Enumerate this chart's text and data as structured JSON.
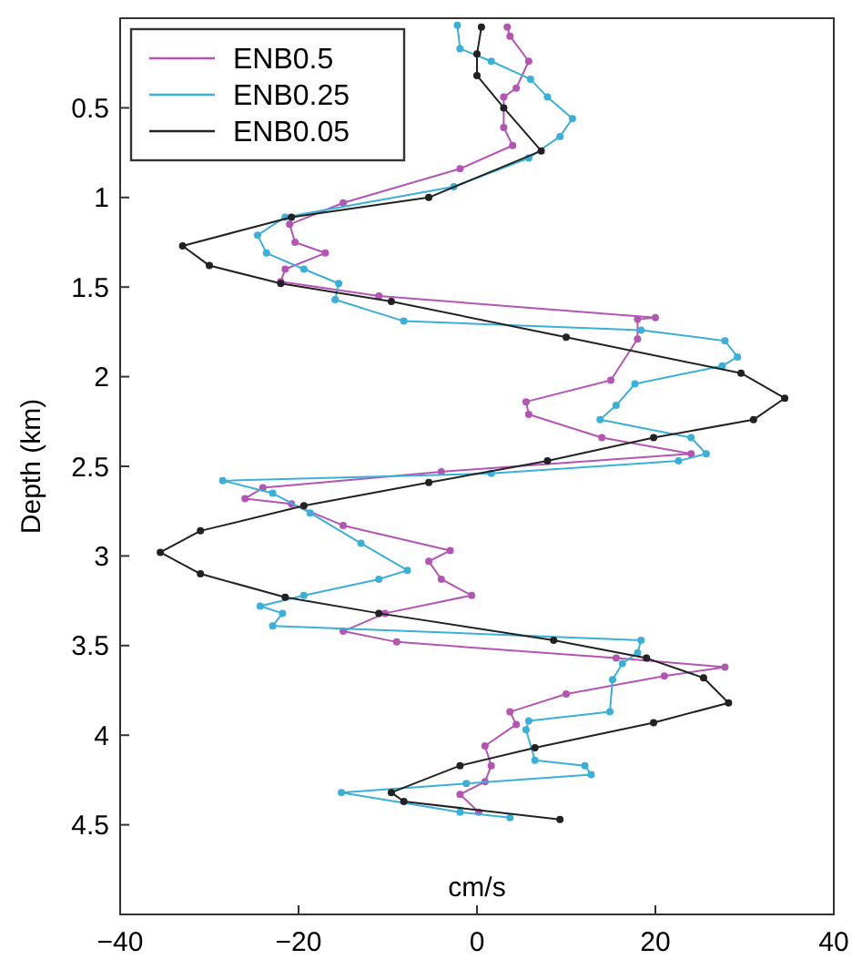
{
  "chart_data": {
    "type": "line",
    "xlabel": "cm/s",
    "ylabel": "Depth (km)",
    "xlim": [
      -40,
      40
    ],
    "xticks": [
      -40,
      -20,
      0,
      20,
      40
    ],
    "ylim": [
      5,
      0
    ],
    "yticks": [
      0.5,
      1,
      1.5,
      2,
      2.5,
      3,
      3.5,
      4,
      4.5
    ],
    "legend": "top left",
    "marker": "circle",
    "line_style": "solid",
    "grid": false,
    "series": [
      {
        "name": "ENB0.5",
        "color": "#b455b4",
        "x": [
          3.4,
          3.7,
          5.8,
          4.4,
          3,
          3,
          4,
          -1.9,
          -15,
          -21,
          -20.4,
          -17,
          -21.5,
          -22,
          -11,
          20,
          18,
          18,
          15,
          5.5,
          5.8,
          14,
          24,
          -4,
          -24,
          -26,
          -20.8,
          -15,
          -3,
          -5.4,
          -4,
          -0.6,
          -10.3,
          -15,
          -9,
          15.6,
          27.8,
          21,
          10,
          3.7,
          4.4,
          0.9,
          1.6,
          0.9,
          -1.9,
          0.2
        ],
        "values": [
          0.05,
          0.1,
          0.24,
          0.39,
          0.44,
          0.61,
          0.71,
          0.84,
          1.03,
          1.15,
          1.25,
          1.31,
          1.4,
          1.47,
          1.55,
          1.67,
          1.68,
          1.79,
          2.02,
          2.14,
          2.21,
          2.34,
          2.43,
          2.53,
          2.62,
          2.68,
          2.71,
          2.83,
          2.97,
          3.03,
          3.13,
          3.22,
          3.32,
          3.42,
          3.48,
          3.57,
          3.62,
          3.67,
          3.77,
          3.87,
          3.94,
          4.06,
          4.17,
          4.26,
          4.33,
          4.43
        ]
      },
      {
        "name": "ENB0.25",
        "color": "#3ab0d8",
        "x": [
          -2.2,
          -1.9,
          1.6,
          6,
          7.9,
          10.7,
          9.3,
          5.8,
          -2.6,
          -21.5,
          -24.6,
          -23.6,
          -19.4,
          -15.5,
          -15.9,
          -8.2,
          18.4,
          27.8,
          29.2,
          27.5,
          17.7,
          15.6,
          13.8,
          24,
          25.7,
          22.6,
          1.6,
          -28.5,
          -22.9,
          -18.7,
          -13,
          -7.8,
          -11,
          -19.4,
          -24.3,
          -21.8,
          -22.9,
          18.4,
          18,
          16.3,
          15.2,
          14.9,
          5.8,
          5.5,
          6.5,
          12.1,
          12.8,
          -1.2,
          -15.2,
          -1.9,
          3.7
        ],
        "values": [
          0.04,
          0.17,
          0.24,
          0.34,
          0.44,
          0.56,
          0.66,
          0.78,
          0.94,
          1.11,
          1.21,
          1.31,
          1.4,
          1.48,
          1.57,
          1.69,
          1.74,
          1.8,
          1.89,
          1.94,
          2.04,
          2.16,
          2.24,
          2.34,
          2.43,
          2.47,
          2.54,
          2.58,
          2.65,
          2.76,
          2.93,
          3.08,
          3.13,
          3.22,
          3.28,
          3.32,
          3.39,
          3.47,
          3.54,
          3.6,
          3.69,
          3.87,
          3.92,
          3.97,
          4.14,
          4.17,
          4.22,
          4.27,
          4.32,
          4.43,
          4.46
        ]
      },
      {
        "name": "ENB0.05",
        "color": "#222222",
        "x": [
          0.5,
          0,
          0,
          3,
          7.2,
          -5.4,
          -20.8,
          -33,
          -30,
          -22,
          -9.6,
          10,
          29.6,
          34.5,
          31,
          19.8,
          7.9,
          -5.4,
          -19.4,
          -31,
          -35.5,
          -31,
          -21.5,
          -11,
          8.6,
          19,
          25.4,
          28.2,
          19.8,
          6.5,
          -1.9,
          -9.6,
          -8.2,
          9.3
        ],
        "values": [
          0.05,
          0.2,
          0.32,
          0.5,
          0.74,
          1.0,
          1.11,
          1.27,
          1.38,
          1.48,
          1.58,
          1.78,
          1.98,
          2.12,
          2.24,
          2.34,
          2.47,
          2.59,
          2.72,
          2.86,
          2.98,
          3.1,
          3.23,
          3.32,
          3.47,
          3.57,
          3.68,
          3.82,
          3.93,
          4.07,
          4.17,
          4.32,
          4.37,
          4.47
        ]
      }
    ]
  }
}
